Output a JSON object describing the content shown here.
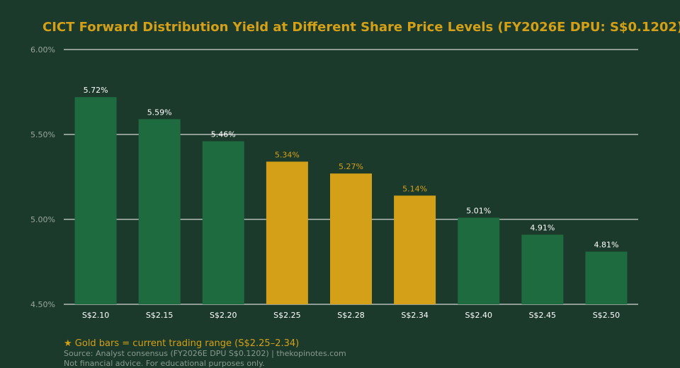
{
  "colors": {
    "background": "#1b3a2b",
    "bar_green": "#1e6b40",
    "bar_gold": "#d4a017",
    "title": "#d4a017",
    "grid": "#ffffff",
    "tick_label": "#9aa59e",
    "category_label": "#ffffff",
    "footer": "#8a9a8f"
  },
  "chart_data": {
    "type": "bar",
    "title": "CICT Forward Distribution Yield at Different Share Price Levels (FY2026E DPU: S$0.1202)",
    "xlabel": "",
    "ylabel": "",
    "categories": [
      "S$2.10",
      "S$2.15",
      "S$2.20",
      "S$2.25",
      "S$2.28",
      "S$2.34",
      "S$2.40",
      "S$2.45",
      "S$2.50"
    ],
    "values": [
      5.72,
      5.59,
      5.46,
      5.34,
      5.27,
      5.14,
      5.01,
      4.91,
      4.81
    ],
    "value_labels": [
      "5.72%",
      "5.59%",
      "5.46%",
      "5.34%",
      "5.27%",
      "5.14%",
      "5.01%",
      "4.91%",
      "4.81%"
    ],
    "highlight": [
      false,
      false,
      false,
      true,
      true,
      true,
      false,
      false,
      false
    ],
    "ylim": [
      4.5,
      6.0
    ],
    "yticks": [
      4.5,
      5.0,
      5.5,
      6.0
    ],
    "ytick_labels": [
      "4.50%",
      "5.00%",
      "5.50%",
      "6.00%"
    ],
    "grid": true
  },
  "footer": {
    "gold_note": "★ Gold bars = current trading range (S$2.25–2.34)",
    "source": "Source: Analyst consensus (FY2026E DPU S$0.1202) | thekopinotes.com",
    "disclaimer": "Not financial advice. For educational purposes only."
  }
}
